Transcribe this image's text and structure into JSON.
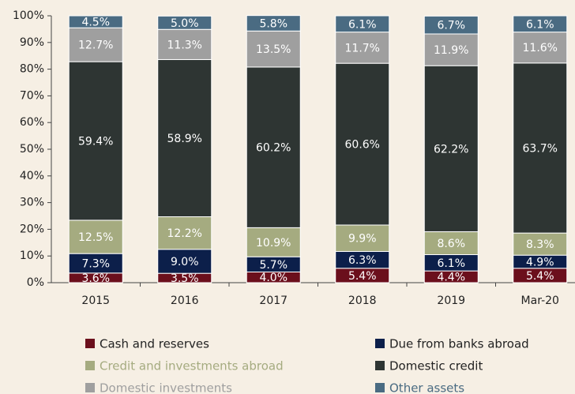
{
  "chart_data": {
    "type": "stacked_bar",
    "categories": [
      "2015",
      "2016",
      "2017",
      "2018",
      "2019",
      "Mar-20"
    ],
    "series": [
      {
        "name": "Cash and reserves",
        "color": "#6b0f1c",
        "values": [
          3.6,
          3.5,
          4.0,
          5.4,
          4.4,
          5.4
        ],
        "value_labels": [
          "3.6%",
          "3.5%",
          "4.0%",
          "5.4%",
          "4.4%",
          "5.4%"
        ]
      },
      {
        "name": "Due from banks abroad",
        "color": "#0c1f4a",
        "values": [
          7.3,
          9.0,
          5.7,
          6.3,
          6.1,
          4.9
        ],
        "value_labels": [
          "7.3%",
          "9.0%",
          "5.7%",
          "6.3%",
          "6.1%",
          "4.9%"
        ]
      },
      {
        "name": "Credit and investments abroad",
        "color": "#a5ab80",
        "values": [
          12.5,
          12.2,
          10.9,
          9.9,
          8.6,
          8.3
        ],
        "value_labels": [
          "12.5%",
          "12.2%",
          "10.9%",
          "9.9%",
          "8.6%",
          "8.3%"
        ]
      },
      {
        "name": "Domestic credit",
        "color": "#2e3533",
        "values": [
          59.4,
          58.9,
          60.2,
          60.6,
          62.2,
          63.7
        ],
        "value_labels": [
          "59.4%",
          "58.9%",
          "60.2%",
          "60.6%",
          "62.2%",
          "63.7%"
        ]
      },
      {
        "name": "Domestic investments",
        "color": "#9f9f9f",
        "values": [
          12.7,
          11.3,
          13.5,
          11.7,
          11.9,
          11.6
        ],
        "value_labels": [
          "12.7%",
          "11.3%",
          "13.5%",
          "11.7%",
          "11.9%",
          "11.6%"
        ]
      },
      {
        "name": "Other assets",
        "color": "#4a6b82",
        "values": [
          4.5,
          5.0,
          5.8,
          6.1,
          6.7,
          6.1
        ],
        "value_labels": [
          "4.5%",
          "5.0%",
          "5.8%",
          "6.1%",
          "6.7%",
          "6.1%"
        ]
      }
    ],
    "ylim": [
      0,
      100
    ],
    "yticks": [
      {
        "value": 0,
        "label": "0%"
      },
      {
        "value": 10,
        "label": "10%"
      },
      {
        "value": 20,
        "label": "20%"
      },
      {
        "value": 30,
        "label": "30%"
      },
      {
        "value": 40,
        "label": "40%"
      },
      {
        "value": 50,
        "label": "50%"
      },
      {
        "value": 60,
        "label": "60%"
      },
      {
        "value": 70,
        "label": "70%"
      },
      {
        "value": 80,
        "label": "80%"
      },
      {
        "value": 90,
        "label": "90%"
      },
      {
        "value": 100,
        "label": "100%"
      }
    ],
    "legend": "bottom"
  }
}
